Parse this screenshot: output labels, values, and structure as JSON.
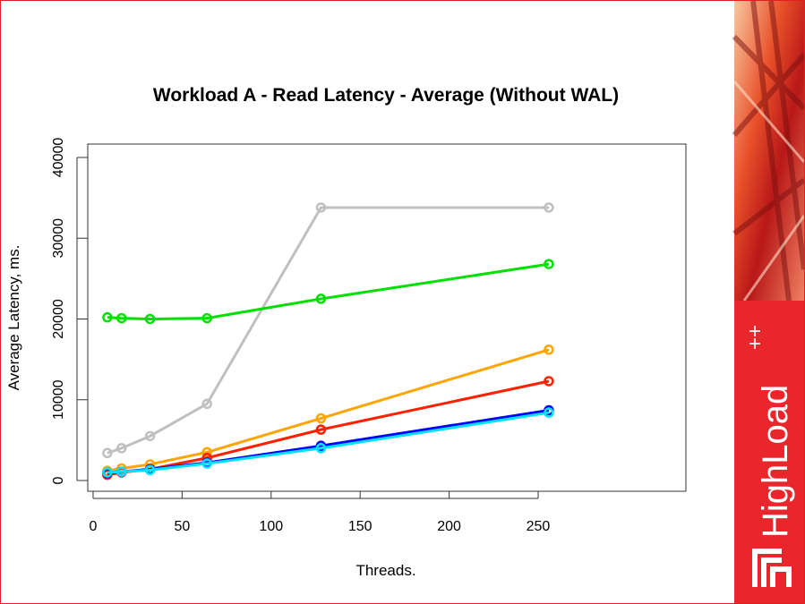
{
  "chart_data": {
    "type": "line",
    "title": "Workload A - Read Latency - Average (Without WAL)",
    "xlabel": "Threads.",
    "ylabel": "Average Latency, ms.",
    "x": [
      8,
      16,
      32,
      64,
      128,
      256
    ],
    "series": [
      {
        "color": "#c0c0c0",
        "values": [
          3400,
          4000,
          5500,
          9500,
          33800,
          33800
        ]
      },
      {
        "color": "#00e000",
        "values": [
          20200,
          20100,
          20000,
          20100,
          22500,
          26800
        ]
      },
      {
        "color": "#ffa500",
        "values": [
          1200,
          1500,
          2000,
          3500,
          7700,
          16200
        ]
      },
      {
        "color": "#ff2000",
        "values": [
          700,
          1000,
          1400,
          2800,
          6300,
          12300
        ]
      },
      {
        "color": "#0000ff",
        "values": [
          900,
          1100,
          1400,
          2200,
          4300,
          8700
        ]
      },
      {
        "color": "#00e0ff",
        "values": [
          1000,
          1100,
          1300,
          2100,
          4000,
          8400
        ]
      }
    ],
    "xlim": [
      -3,
      333
    ],
    "ylim": [
      -1330,
      41660
    ],
    "xticks": [
      0,
      50,
      100,
      150,
      200,
      250
    ],
    "yticks": [
      0,
      10000,
      20000,
      30000,
      40000
    ]
  },
  "logo": {
    "name": "HighLoad",
    "sup": "++"
  }
}
